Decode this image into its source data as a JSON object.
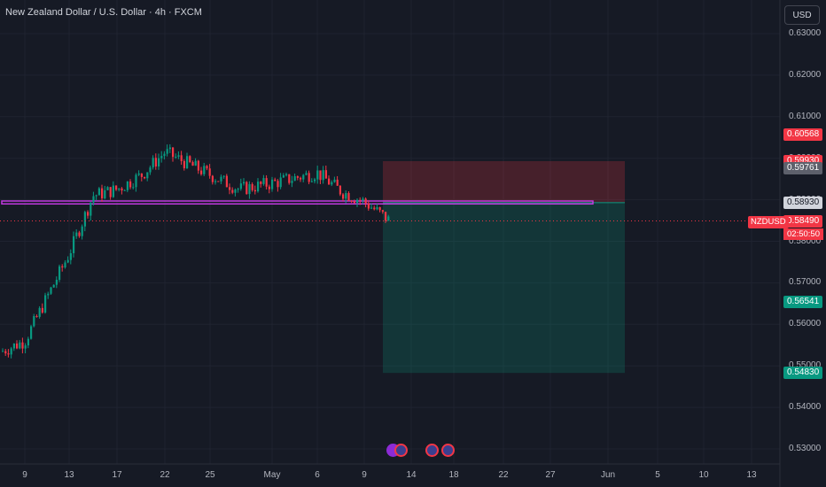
{
  "header": {
    "title": "New Zealand Dollar / U.S. Dollar · 4h · FXCM",
    "currency_button": "USD"
  },
  "symbol_tag": "NZDUSD",
  "countdown": "02:50:50",
  "price_axis": {
    "ticks": [
      "0.63000",
      "0.62000",
      "0.61000",
      "0.60000",
      "0.59000",
      "0.58000",
      "0.57000",
      "0.56000",
      "0.55000",
      "0.54000",
      "0.53000"
    ]
  },
  "time_axis": {
    "ticks": [
      "9",
      "13",
      "17",
      "22",
      "25",
      "May",
      "6",
      "9",
      "14",
      "18",
      "22",
      "27",
      "Jun",
      "5",
      "10",
      "13"
    ]
  },
  "price_badges": [
    {
      "label": "0.60568",
      "color": "#f23645"
    },
    {
      "label": "0.59930",
      "color": "#f23645"
    },
    {
      "label": "0.59761",
      "color": "#5d606b"
    },
    {
      "label": "0.58930",
      "color": "#d1d4dc"
    },
    {
      "label": "0.58490",
      "color": "#f23645"
    },
    {
      "label": "0.56541",
      "color": "#089981"
    },
    {
      "label": "0.54830",
      "color": "#089981"
    }
  ],
  "colors": {
    "up": "#089981",
    "down": "#f23645",
    "zone": "#c239e0",
    "background": "#161a25"
  },
  "chart_data": {
    "type": "candlestick",
    "symbol": "NZDUSD",
    "timeframe": "4h",
    "close_path": [
      {
        "x": "9",
        "y": 0.556
      },
      {
        "x": "13",
        "y": 0.577
      },
      {
        "x": "15",
        "y": 0.591
      },
      {
        "x": "17",
        "y": 0.5925
      },
      {
        "x": "19",
        "y": 0.596
      },
      {
        "x": "22",
        "y": 0.6015
      },
      {
        "x": "25",
        "y": 0.596
      },
      {
        "x": "29",
        "y": 0.5925
      },
      {
        "x": "May",
        "y": 0.594
      },
      {
        "x": "6",
        "y": 0.5965
      },
      {
        "x": "8",
        "y": 0.592
      },
      {
        "x": "9",
        "y": 0.5895
      },
      {
        "x": "10",
        "y": 0.5849
      }
    ],
    "current_price": 0.5849,
    "resistance_zone": [
      0.589,
      0.5897
    ],
    "position": {
      "type": "short",
      "stop": 0.5993,
      "entry": 0.5893,
      "target": 0.5483
    },
    "ylim": [
      0.525,
      0.635
    ]
  }
}
